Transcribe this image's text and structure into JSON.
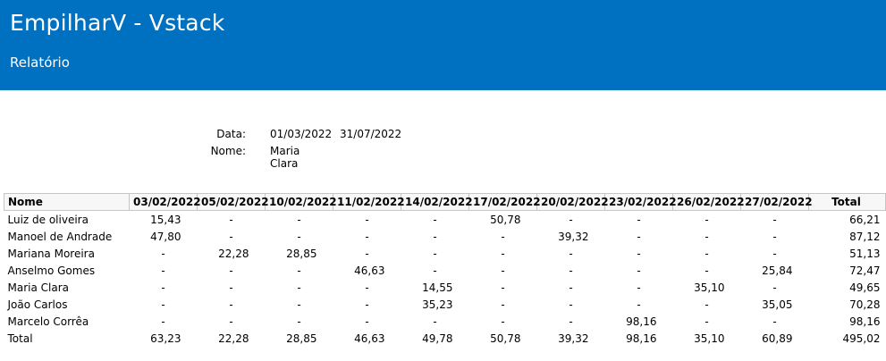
{
  "header": {
    "title": "EmpilharV - Vstack",
    "subtitle": "Relatório"
  },
  "filters": {
    "date_label": "Data:",
    "date_from": "01/03/2022",
    "date_to": "31/07/2022",
    "name_label": "Nome:",
    "name_value": "Maria Clara"
  },
  "report": {
    "columns": [
      "Nome",
      "03/02/2022",
      "05/02/2022",
      "10/02/2022",
      "11/02/2022",
      "14/02/2022",
      "17/02/2022",
      "20/02/2022",
      "23/02/2022",
      "26/02/2022",
      "27/02/2022",
      "Total"
    ],
    "rows": [
      {
        "name": "Luiz de oliveira",
        "values": [
          "15,43",
          "-",
          "-",
          "-",
          "-",
          "50,78",
          "-",
          "-",
          "-",
          "-"
        ],
        "total": "66,21"
      },
      {
        "name": "Manoel de Andrade",
        "values": [
          "47,80",
          "-",
          "-",
          "-",
          "-",
          "-",
          "39,32",
          "-",
          "-",
          "-"
        ],
        "total": "87,12"
      },
      {
        "name": "Mariana Moreira",
        "values": [
          "-",
          "22,28",
          "28,85",
          "-",
          "-",
          "-",
          "-",
          "-",
          "-",
          "-"
        ],
        "total": "51,13"
      },
      {
        "name": "Anselmo Gomes",
        "values": [
          "-",
          "-",
          "-",
          "46,63",
          "-",
          "-",
          "-",
          "-",
          "-",
          "25,84"
        ],
        "total": "72,47"
      },
      {
        "name": "Maria Clara",
        "values": [
          "-",
          "-",
          "-",
          "-",
          "14,55",
          "-",
          "-",
          "-",
          "35,10",
          "-"
        ],
        "total": "49,65"
      },
      {
        "name": "João Carlos",
        "values": [
          "-",
          "-",
          "-",
          "-",
          "35,23",
          "-",
          "-",
          "-",
          "-",
          "35,05"
        ],
        "total": "70,28"
      },
      {
        "name": "Marcelo Corrêa",
        "values": [
          "-",
          "-",
          "-",
          "-",
          "-",
          "-",
          "-",
          "98,16",
          "-",
          "-"
        ],
        "total": "98,16"
      }
    ],
    "totals": {
      "name": "Total",
      "values": [
        "63,23",
        "22,28",
        "28,85",
        "46,63",
        "49,78",
        "50,78",
        "39,32",
        "98,16",
        "35,10",
        "60,89"
      ],
      "total": "495,02"
    }
  }
}
